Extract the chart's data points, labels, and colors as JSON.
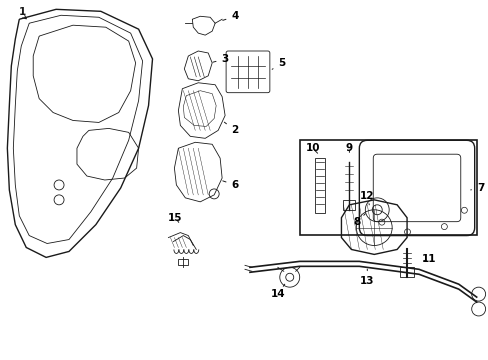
{
  "bg_color": "#ffffff",
  "line_color": "#1a1a1a",
  "label_color": "#000000",
  "fig_width": 4.89,
  "fig_height": 3.6,
  "dpi": 100
}
